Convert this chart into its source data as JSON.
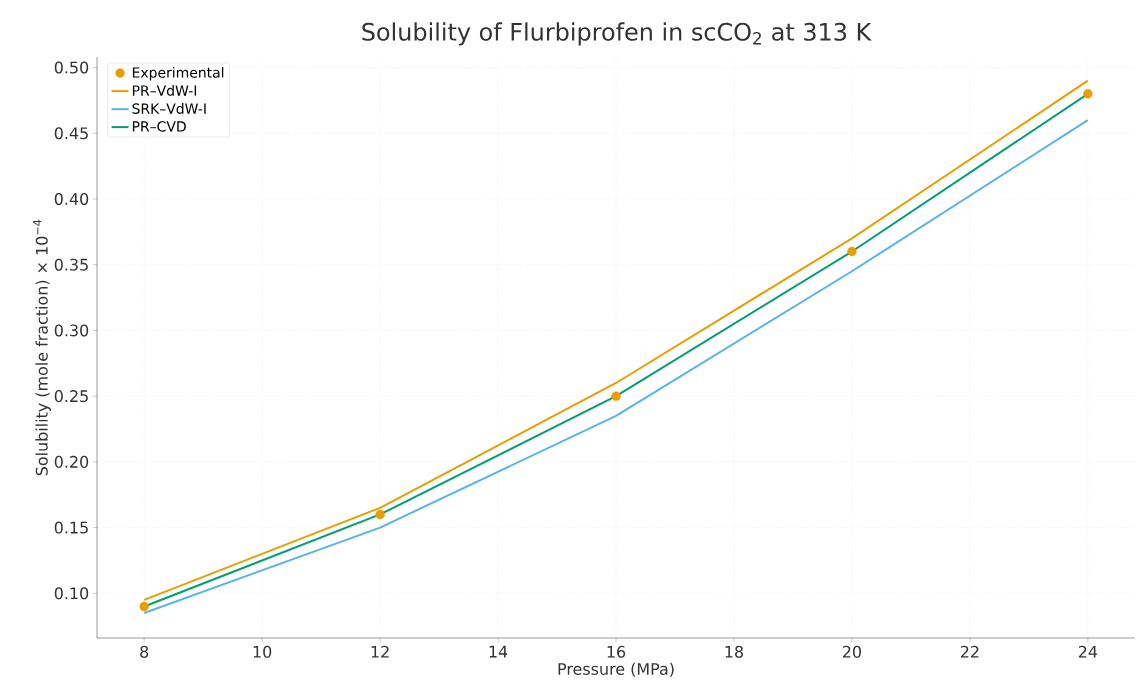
{
  "chart_data": {
    "type": "line",
    "title": "Solubility of Flurbiprofen in scCO$_{2}$ at 313 K",
    "xlabel": "Pressure (MPa)",
    "ylabel": "Solubility (mole fraction) × 10$^{−4}$",
    "x": [
      8,
      12,
      16,
      20,
      24
    ],
    "series": [
      {
        "name": "Experimental",
        "type": "scatter",
        "color": "#e69f00",
        "values": [
          0.09,
          0.16,
          0.25,
          0.36,
          0.48
        ]
      },
      {
        "name": "PR–VdW-I",
        "color": "#e69f00",
        "values": [
          0.095,
          0.165,
          0.26,
          0.37,
          0.49
        ]
      },
      {
        "name": "SRK–VdW-I",
        "color": "#56b4e9",
        "values": [
          0.085,
          0.15,
          0.235,
          0.345,
          0.46
        ]
      },
      {
        "name": "PR–CVD",
        "color": "#009e73",
        "values": [
          0.09,
          0.16,
          0.25,
          0.36,
          0.48
        ]
      }
    ],
    "xlim": [
      7.2,
      24.8
    ],
    "ylim": [
      0.066,
      0.508
    ],
    "xticks": [
      8,
      10,
      12,
      14,
      16,
      18,
      20,
      22,
      24
    ],
    "yticks": [
      {
        "value": 0.1,
        "label": "0.10"
      },
      {
        "value": 0.15,
        "label": "0.15"
      },
      {
        "value": 0.2,
        "label": "0.20"
      },
      {
        "value": 0.25,
        "label": "0.25"
      },
      {
        "value": 0.3,
        "label": "0.30"
      },
      {
        "value": 0.35,
        "label": "0.35"
      },
      {
        "value": 0.4,
        "label": "0.40"
      },
      {
        "value": 0.45,
        "label": "0.45"
      },
      {
        "value": 0.5,
        "label": "0.50"
      }
    ],
    "grid": true,
    "legend": "top left",
    "line_style": "solid"
  }
}
